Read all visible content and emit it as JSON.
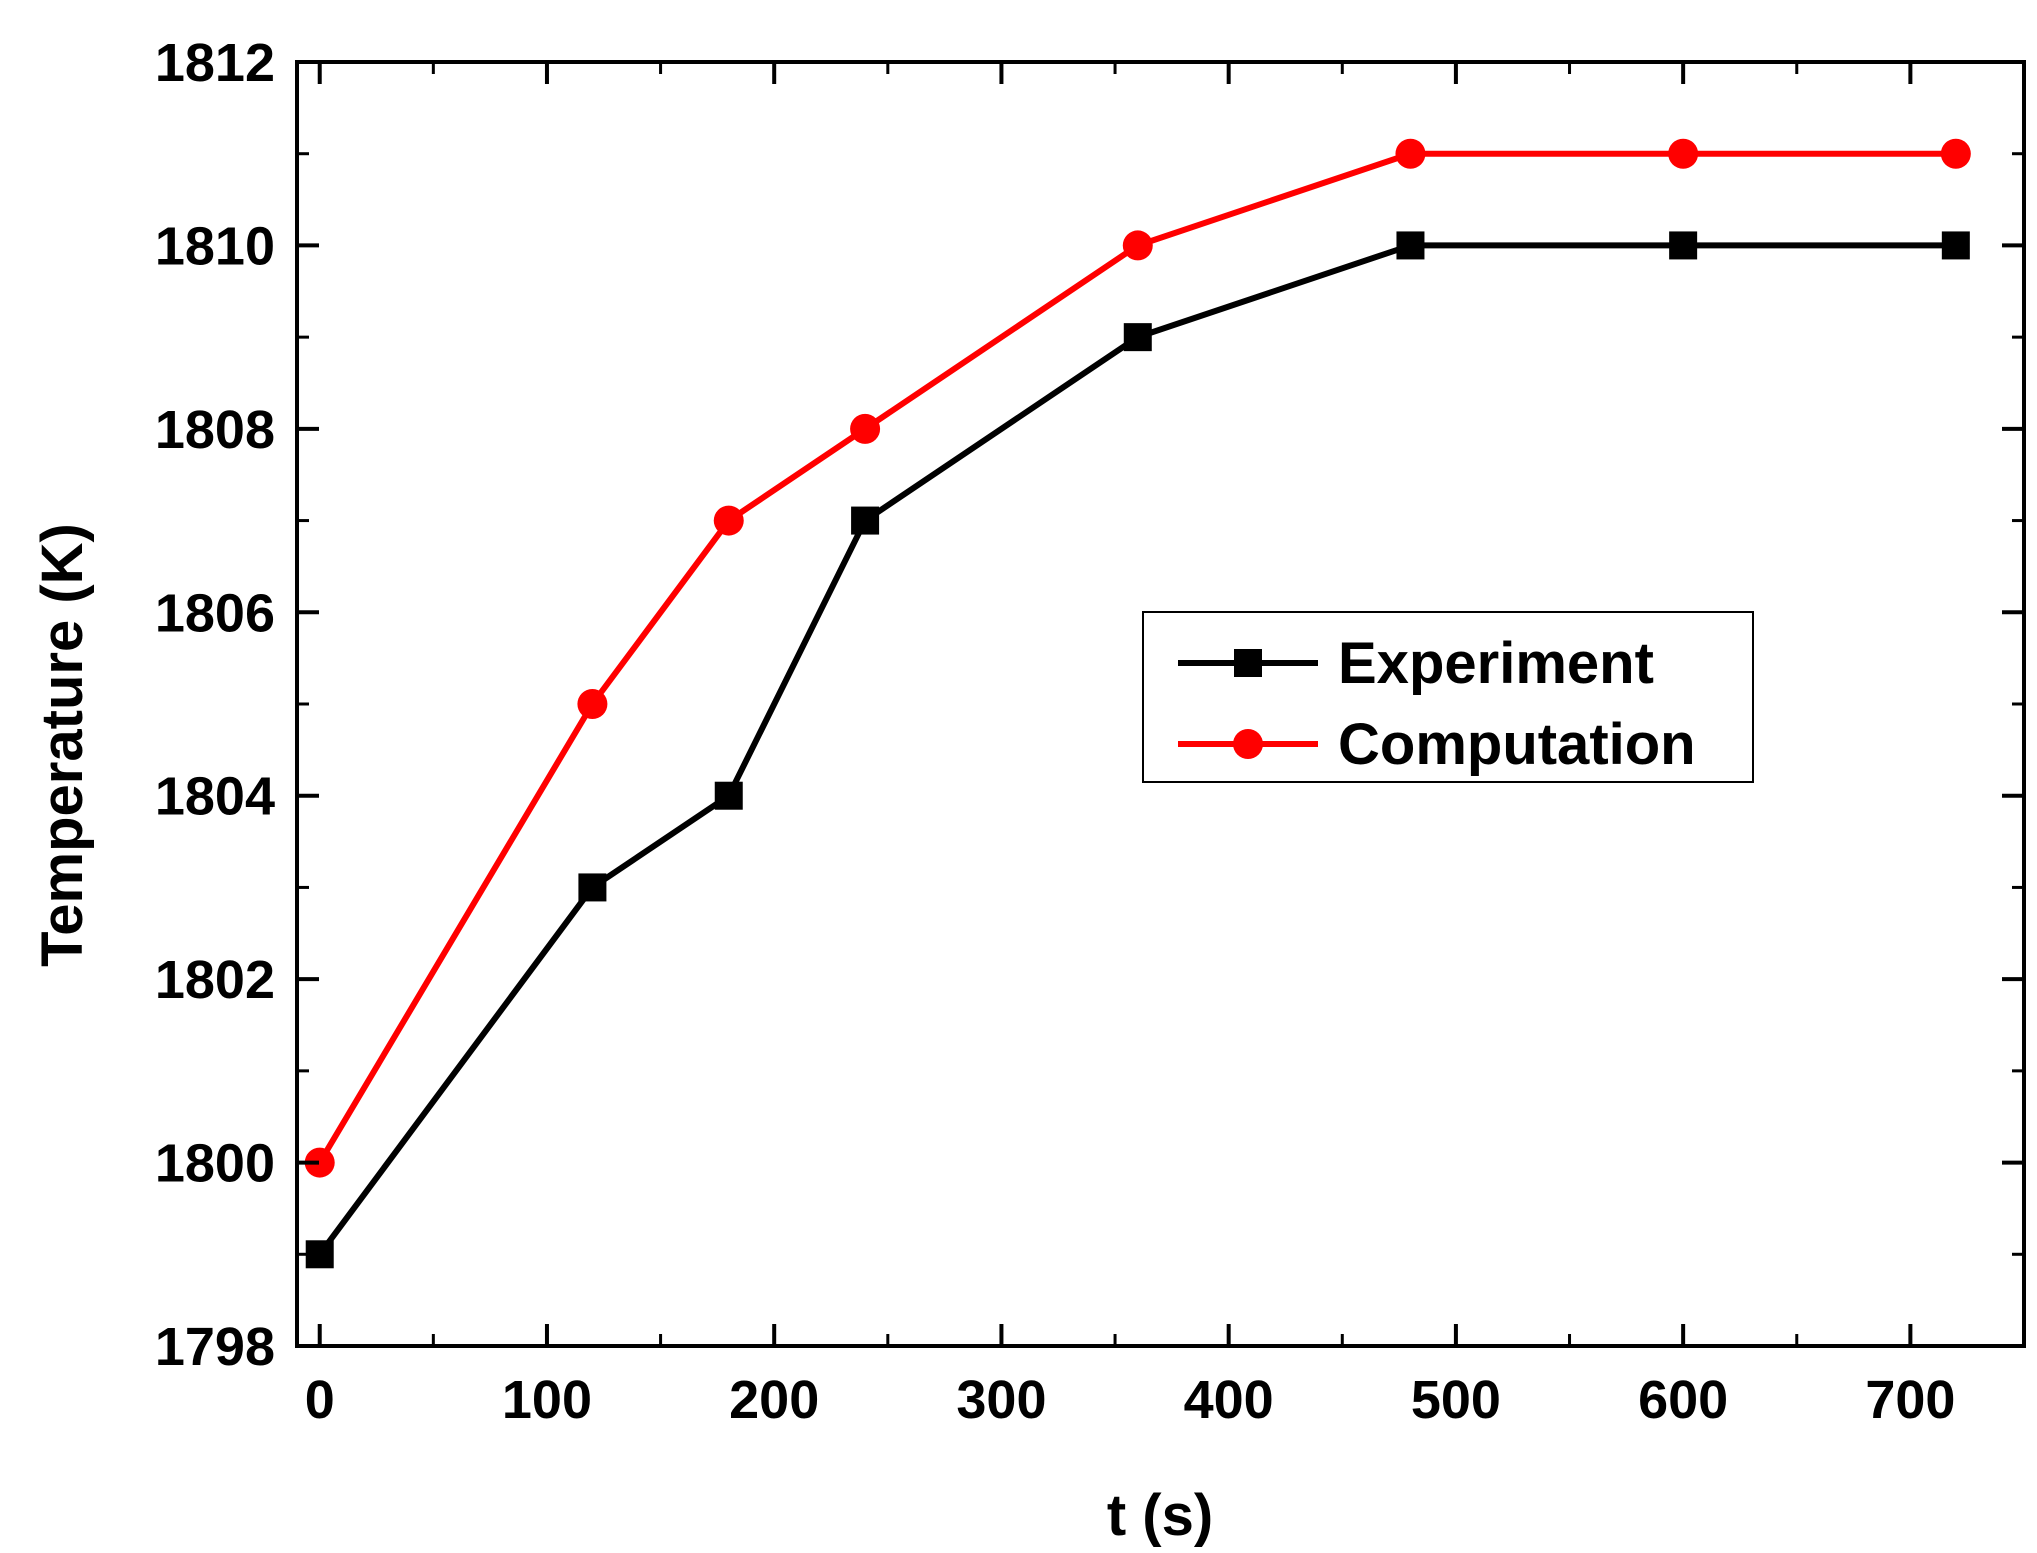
{
  "chart_data": {
    "type": "line",
    "title": "",
    "xlabel": "t (s)",
    "ylabel": "Temperature  (K)",
    "xlim": [
      -10,
      750
    ],
    "ylim": [
      1798,
      1812
    ],
    "xticks": [
      0,
      100,
      200,
      300,
      400,
      500,
      600,
      700
    ],
    "xtick_labels": [
      "0",
      "100",
      "200",
      "300",
      "400",
      "500",
      "600",
      "700"
    ],
    "yticks": [
      1798,
      1800,
      1802,
      1804,
      1806,
      1808,
      1810,
      1812
    ],
    "ytick_labels": [
      "1798",
      "1800",
      "1802",
      "1804",
      "1806",
      "1808",
      "1810",
      "1812"
    ],
    "grid": false,
    "legend_position": "center-right",
    "series": [
      {
        "name": "Experiment",
        "color": "#000000",
        "marker": "square",
        "x": [
          0,
          120,
          180,
          240,
          360,
          480,
          600,
          720
        ],
        "values": [
          1799,
          1803,
          1804,
          1807,
          1809,
          1810,
          1810,
          1810
        ]
      },
      {
        "name": "Computation",
        "color": "#ff0000",
        "marker": "circle",
        "x": [
          0,
          120,
          180,
          240,
          360,
          480,
          600,
          720
        ],
        "values": [
          1800,
          1805,
          1807,
          1808,
          1810,
          1811,
          1811,
          1811
        ]
      }
    ]
  }
}
